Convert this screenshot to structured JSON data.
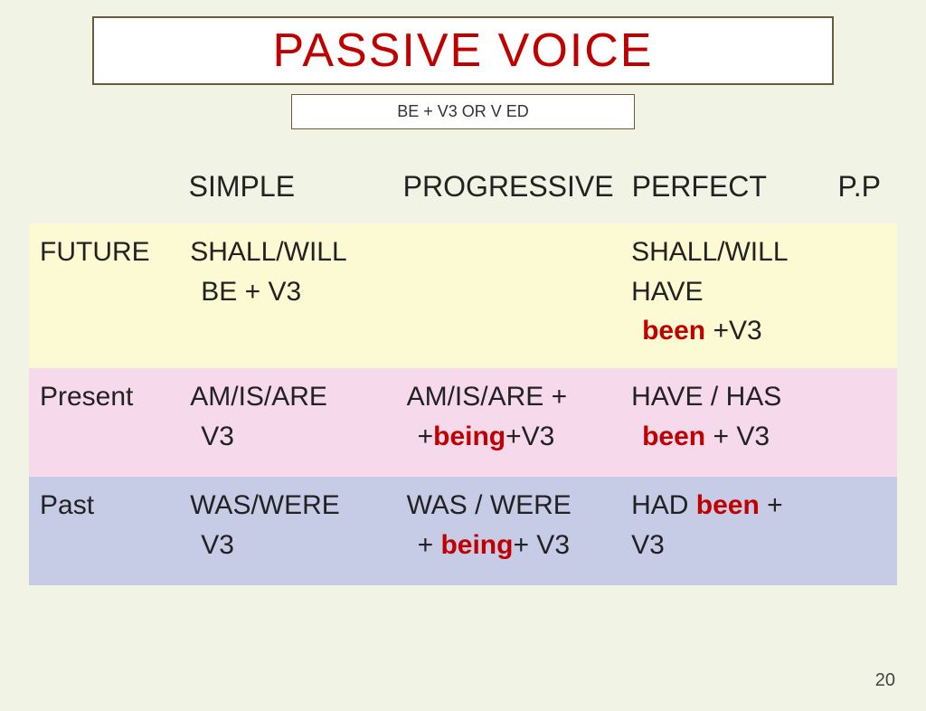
{
  "title": "PASSIVE   VOICE",
  "formula": "BE + V3 OR V ED",
  "columns": {
    "simple": "Simple",
    "progressive": "Progressive",
    "perfect": "Perfect",
    "pp": "P.P"
  },
  "rows": {
    "future": {
      "label": "Future",
      "simple_l1": "SHALL/WILL",
      "simple_l2": "BE  +  V3",
      "progressive": "",
      "perfect_l1": "SHALL/WILL HAVE",
      "perfect_been": "been",
      "perfect_tail": " +V3"
    },
    "present": {
      "label": "Present",
      "simple_l1": "AM/IS/ARE",
      "simple_l2": "V3",
      "prog_l1": "AM/IS/ARE +",
      "prog_plus": "+",
      "prog_being": "being",
      "prog_tail": "+V3",
      "perfect_l1": "HAVE / HAS",
      "perfect_been": "been",
      "perfect_tail": " + V3"
    },
    "past": {
      "label": "Past",
      "simple_l1": "WAS/WERE",
      "simple_l2": "V3",
      "prog_l1": "WAS / WERE",
      "prog_plus": "+ ",
      "prog_being": "being",
      "prog_tail": "+ V3",
      "perfect_l1": "HAD ",
      "perfect_been": "been",
      "perfect_tail": " + V3"
    }
  },
  "page_number": "20",
  "colors": {
    "background": "#f1f3e4",
    "title_red": "#c00000",
    "border": "#6b5a3a",
    "row_future": "#fcfad2",
    "row_present": "#f7d9ec",
    "row_past": "#c7cce6"
  },
  "typography": {
    "title_fontsize": 52,
    "cell_fontsize": 30,
    "header_fontsize": 32,
    "formula_fontsize": 18
  }
}
